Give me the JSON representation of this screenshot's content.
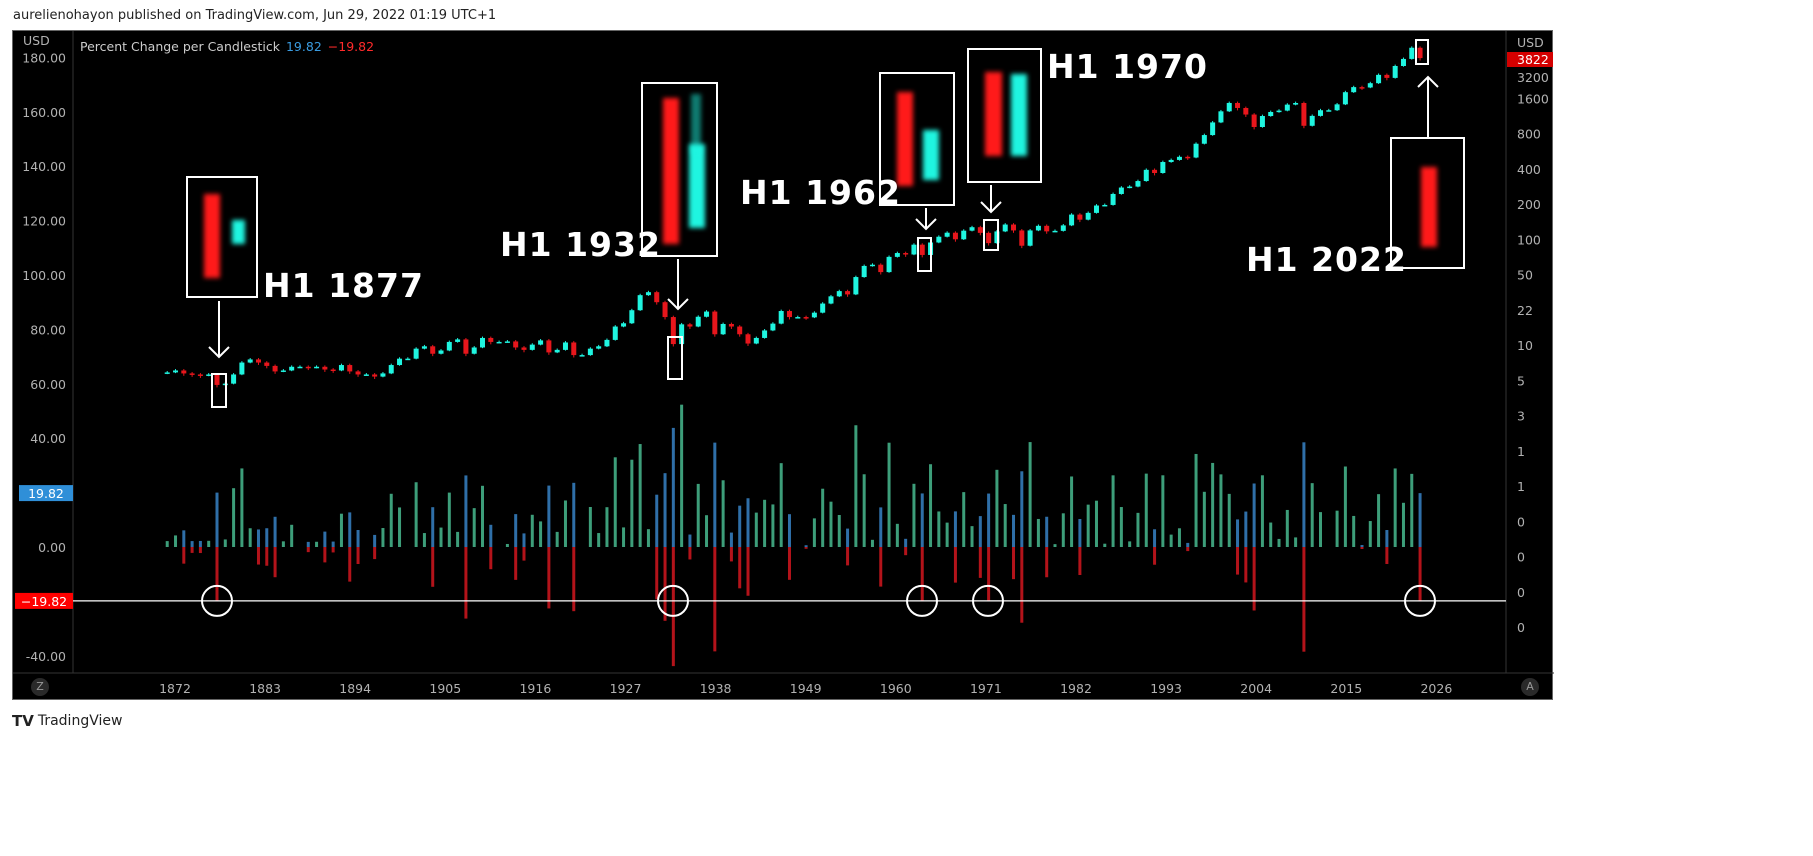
{
  "header": {
    "publisher": "aurelienohayon published on TradingView.com, Jun 29, 2022 01:19 UTC+1"
  },
  "legend": {
    "title": "Percent Change per Candlestick",
    "value_up": "19.82",
    "value_down": "−19.82"
  },
  "left_axis": {
    "unit": "USD",
    "ticks": [
      "180.00",
      "160.00",
      "140.00",
      "120.00",
      "100.00",
      "80.00",
      "60.00",
      "40.00",
      "0.00",
      "-40.00"
    ],
    "badge_up": "19.82",
    "badge_down": "−19.82"
  },
  "right_axis": {
    "unit": "USD",
    "price_badge": "3822",
    "ticks": [
      "3200",
      "1600",
      "800",
      "400",
      "200",
      "100",
      "50",
      "22",
      "10",
      "5",
      "3",
      "1",
      "1",
      "0",
      "0",
      "0",
      "0"
    ]
  },
  "time_axis": {
    "ticks": [
      "1872",
      "1883",
      "1894",
      "1905",
      "1916",
      "1927",
      "1938",
      "1949",
      "1960",
      "1971",
      "1982",
      "1993",
      "2004",
      "2015",
      "2026"
    ]
  },
  "buttons": {
    "z": "Z",
    "a": "A"
  },
  "annotations": [
    {
      "label": "H1 1877"
    },
    {
      "label": "H1 1932"
    },
    {
      "label": "H1 1962"
    },
    {
      "label": "H1 1970"
    },
    {
      "label": "H1 2022"
    }
  ],
  "footer": {
    "brand": "TradingView"
  },
  "colors": {
    "up_candle": "#1ff5e0",
    "down_candle": "#e8161c",
    "hist_up": "#3d9e7a",
    "hist_mirror": "#2f6fa8",
    "hist_down": "#b3131a",
    "background": "#000000"
  },
  "chart_data": {
    "type": "candlestick+histogram",
    "price_scale": "log",
    "first_year": 1871,
    "first_open": 4.6,
    "closes": [
      4.7,
      4.9,
      4.6,
      4.5,
      4.4,
      4.5,
      3.6,
      3.7,
      4.5,
      5.8,
      6.2,
      5.8,
      5.4,
      4.8,
      4.9,
      5.3,
      5.3,
      5.2,
      5.3,
      5.0,
      4.9,
      5.5,
      4.8,
      4.5,
      4.5,
      4.3,
      4.6,
      5.5,
      6.3,
      6.3,
      7.8,
      8.2,
      7.0,
      7.5,
      9.0,
      9.5,
      7.0,
      8.0,
      9.8,
      9.0,
      9.0,
      9.1,
      8.0,
      7.6,
      8.5,
      9.3,
      7.2,
      7.6,
      8.9,
      6.8,
      6.8,
      7.8,
      8.2,
      9.4,
      12.5,
      13.4,
      17.7,
      24.4,
      26.0,
      21.0,
      15.3,
      8.6,
      13.1,
      12.5,
      15.4,
      17.2,
      10.6,
      13.2,
      12.5,
      10.6,
      8.7,
      9.8,
      11.5,
      13.3,
      17.4,
      15.3,
      15.3,
      15.2,
      16.8,
      20.4,
      23.8,
      26.6,
      24.8,
      35.9,
      45.5,
      46.7,
      39.9,
      55.2,
      59.9,
      58.1,
      71.6,
      57.5,
      75.0,
      84.8,
      92.4,
      80.3,
      96.5,
      103.9,
      92.1,
      74.0,
      95,
      110,
      97,
      70,
      97,
      107,
      95.1,
      96.1,
      108,
      136,
      122,
      141,
      165,
      167,
      211,
      242,
      247,
      278,
      353,
      330,
      417,
      436,
      466,
      459,
      616,
      741,
      970,
      1229,
      1469,
      1320,
      1148,
      880,
      1112,
      1212,
      1248,
      1418,
      1468,
      903,
      1115,
      1258,
      1258,
      1426,
      1848,
      2059,
      2044,
      2239,
      2674,
      2507,
      3231,
      3756,
      4766,
      3822
    ],
    "histogram": "percent change per candle (up: green; down: red below zero mirrored in blue above)",
    "reference_lines": [
      19.82,
      -19.82
    ],
    "highlighted_years": [
      1877,
      1932,
      1962,
      1970,
      2022
    ],
    "left_ylim": [
      -40,
      180
    ]
  }
}
